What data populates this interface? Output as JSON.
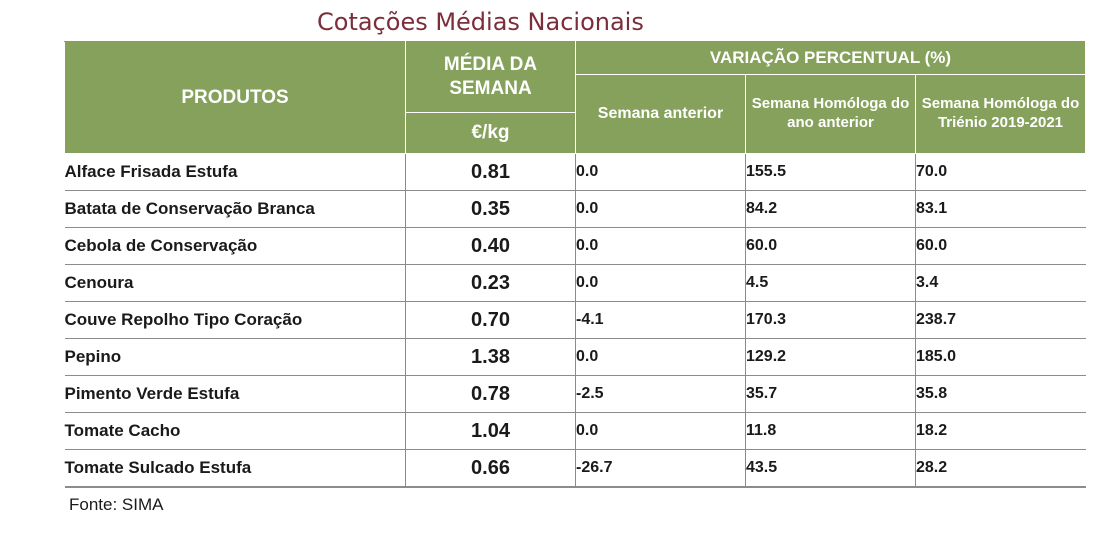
{
  "title": "Cotações Médias Nacionais",
  "header": {
    "produtos": "PRODUTOS",
    "media_semana": "MÉDIA DA SEMANA",
    "unit": "€/kg",
    "variacao": "VARIAÇÃO PERCENTUAL (%)",
    "semana_anterior": "Semana anterior",
    "semana_homologa_ano": "Semana Homóloga do ano anterior",
    "semana_homologa_trienio": "Semana Homóloga do Triénio 2019-2021"
  },
  "rows": [
    {
      "produto": "Alface Frisada Estufa",
      "media": "0.81",
      "var_semana": "0.0",
      "var_ano": "155.5",
      "var_trienio": "70.0"
    },
    {
      "produto": "Batata de Conservação Branca",
      "media": "0.35",
      "var_semana": "0.0",
      "var_ano": "84.2",
      "var_trienio": "83.1"
    },
    {
      "produto": "Cebola de Conservação",
      "media": "0.40",
      "var_semana": "0.0",
      "var_ano": "60.0",
      "var_trienio": "60.0"
    },
    {
      "produto": "Cenoura",
      "media": "0.23",
      "var_semana": "0.0",
      "var_ano": "4.5",
      "var_trienio": "3.4"
    },
    {
      "produto": "Couve Repolho Tipo Coração",
      "media": "0.70",
      "var_semana": "-4.1",
      "var_ano": "170.3",
      "var_trienio": "238.7"
    },
    {
      "produto": "Pepino",
      "media": "1.38",
      "var_semana": "0.0",
      "var_ano": "129.2",
      "var_trienio": "185.0"
    },
    {
      "produto": "Pimento Verde Estufa",
      "media": "0.78",
      "var_semana": "-2.5",
      "var_ano": "35.7",
      "var_trienio": "35.8"
    },
    {
      "produto": "Tomate Cacho",
      "media": "1.04",
      "var_semana": "0.0",
      "var_ano": "11.8",
      "var_trienio": "18.2"
    },
    {
      "produto": "Tomate Sulcado Estufa",
      "media": "0.66",
      "var_semana": "-26.7",
      "var_ano": "43.5",
      "var_trienio": "28.2"
    }
  ],
  "source": "Fonte: SIMA",
  "colors": {
    "header_bg": "#86a15c",
    "title": "#7b2d3a"
  }
}
